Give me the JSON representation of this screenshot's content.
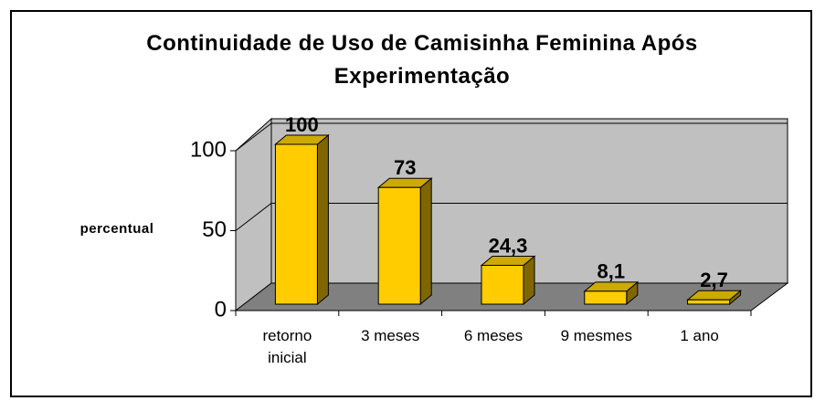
{
  "chart_data": {
    "type": "bar3d",
    "title": "Continuidade de Uso de Camisinha Feminina Após Experimentação",
    "ylabel": "percentual",
    "categories": [
      "retorno inicial",
      "3 meses",
      "6 meses",
      "9 mesmes",
      "1 ano"
    ],
    "values": [
      100,
      73,
      24.3,
      8.1,
      2.7
    ],
    "value_labels": [
      "100",
      "73",
      "24,3",
      "8,1",
      "2,7"
    ],
    "color": "#ffcc00",
    "ylim": [
      0,
      100
    ],
    "yticks": [
      0,
      50,
      100
    ],
    "grid": true
  }
}
